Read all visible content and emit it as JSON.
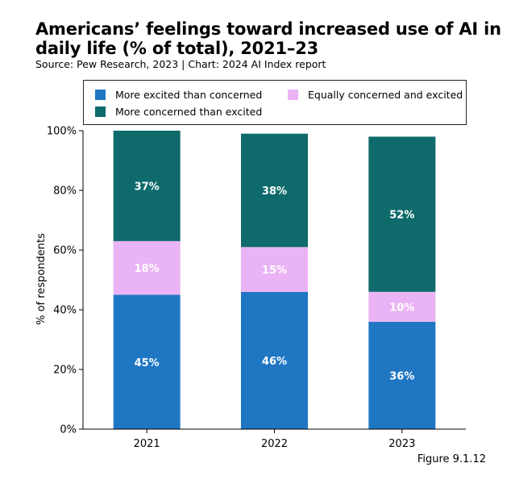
{
  "title": "Americans’ feelings toward increased use of AI in daily life (% of total), 2021–23",
  "subtitle": "Source: Pew Research, 2023 | Chart: 2024 AI Index report",
  "figure_label": "Figure 9.1.12",
  "colors": {
    "excited": "#1f77c4",
    "equal": "#eab3f5",
    "concerned": "#0f6b6b"
  },
  "chart_data": {
    "type": "bar",
    "stacked": true,
    "categories": [
      "2021",
      "2022",
      "2023"
    ],
    "series": [
      {
        "name": "More excited than concerned",
        "values": [
          45,
          46,
          36
        ],
        "labels": [
          "45%",
          "46%",
          "36%"
        ]
      },
      {
        "name": "Equally concerned and excited",
        "values": [
          18,
          15,
          10
        ],
        "labels": [
          "18%",
          "15%",
          "10%"
        ]
      },
      {
        "name": "More concerned than excited",
        "values": [
          37,
          38,
          52
        ],
        "labels": [
          "37%",
          "38%",
          "52%"
        ]
      }
    ],
    "xlabel": "",
    "ylabel": "% of respondents",
    "ylim": [
      0,
      100
    ],
    "yticks": [
      "0%",
      "20%",
      "40%",
      "60%",
      "80%",
      "100%"
    ],
    "legend_position": "top"
  }
}
